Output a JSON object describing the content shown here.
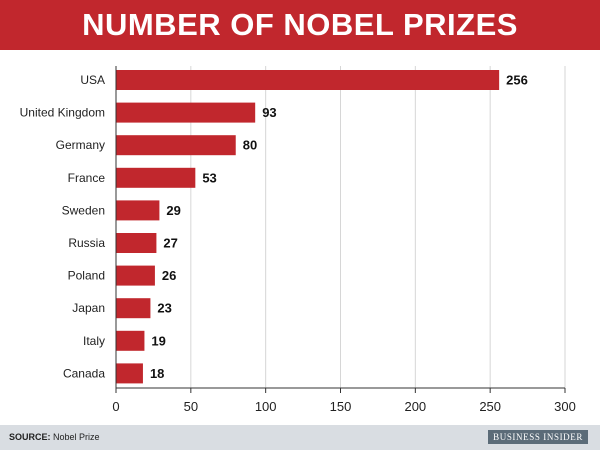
{
  "header": {
    "title": "NUMBER OF NOBEL PRIZES"
  },
  "chart_data": {
    "type": "bar",
    "orientation": "horizontal",
    "title": "NUMBER OF NOBEL PRIZES",
    "categories": [
      "USA",
      "United Kingdom",
      "Germany",
      "France",
      "Sweden",
      "Russia",
      "Poland",
      "Japan",
      "Italy",
      "Canada"
    ],
    "values": [
      256,
      93,
      80,
      53,
      29,
      27,
      26,
      23,
      19,
      18
    ],
    "xlim": [
      0,
      300
    ],
    "xticks": [
      0,
      50,
      100,
      150,
      200,
      250,
      300
    ],
    "grid": "vertical",
    "legend": "none",
    "bar_color": "#c1272d"
  },
  "footer": {
    "source_label": "SOURCE:",
    "source_text": " Nobel Prize",
    "brand": "BUSINESS INSIDER"
  }
}
